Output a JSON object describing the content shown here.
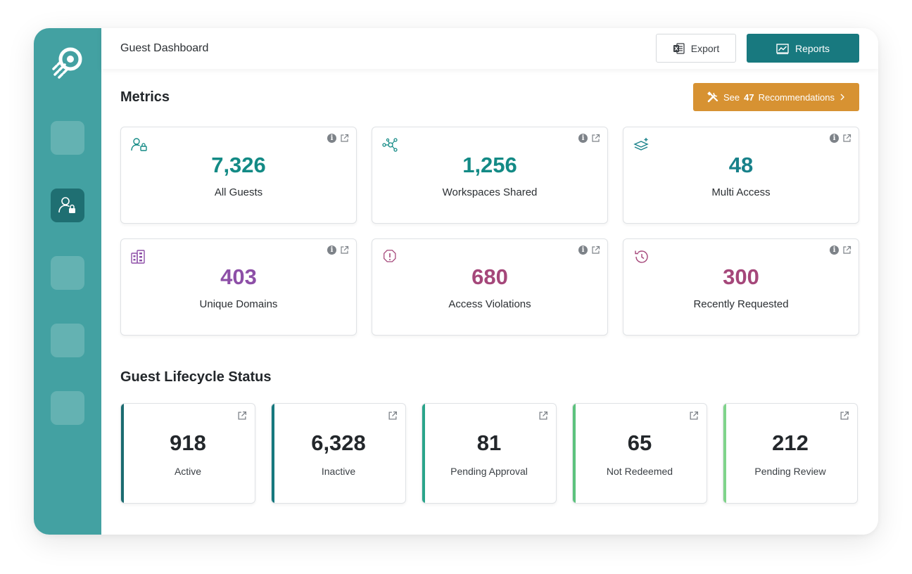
{
  "header": {
    "title": "Guest Dashboard",
    "export_label": "Export",
    "reports_label": "Reports"
  },
  "metrics": {
    "title": "Metrics",
    "recommendations": {
      "prefix": "See",
      "count": "47",
      "suffix": "Recommendations"
    },
    "cards": [
      {
        "value": "7,326",
        "label": "All Guests",
        "icon": "user-lock-icon",
        "color": "#138a85"
      },
      {
        "value": "1,256",
        "label": "Workspaces Shared",
        "icon": "share-nodes-icon",
        "color": "#138a85"
      },
      {
        "value": "48",
        "label": "Multi Access",
        "icon": "layers-plus-icon",
        "color": "#18818a"
      },
      {
        "value": "403",
        "label": "Unique Domains",
        "icon": "buildings-icon",
        "color": "#8d4fa7"
      },
      {
        "value": "680",
        "label": "Access Violations",
        "icon": "alert-octagon-icon",
        "color": "#a5477a"
      },
      {
        "value": "300",
        "label": "Recently Requested",
        "icon": "history-icon",
        "color": "#a5477a"
      }
    ]
  },
  "lifecycle": {
    "title": "Guest Lifecycle Status",
    "cards": [
      {
        "value": "918",
        "label": "Active",
        "color": "#1b6b70"
      },
      {
        "value": "6,328",
        "label": "Inactive",
        "color": "#16787e"
      },
      {
        "value": "81",
        "label": "Pending Approval",
        "color": "#2aa48a"
      },
      {
        "value": "65",
        "label": "Not Redeemed",
        "color": "#5cc27d"
      },
      {
        "value": "212",
        "label": "Pending Review",
        "color": "#7fd48a"
      }
    ]
  },
  "colors": {
    "sidebar": "#43a1a2",
    "primary": "#18797f",
    "recommendation": "#d79232"
  }
}
